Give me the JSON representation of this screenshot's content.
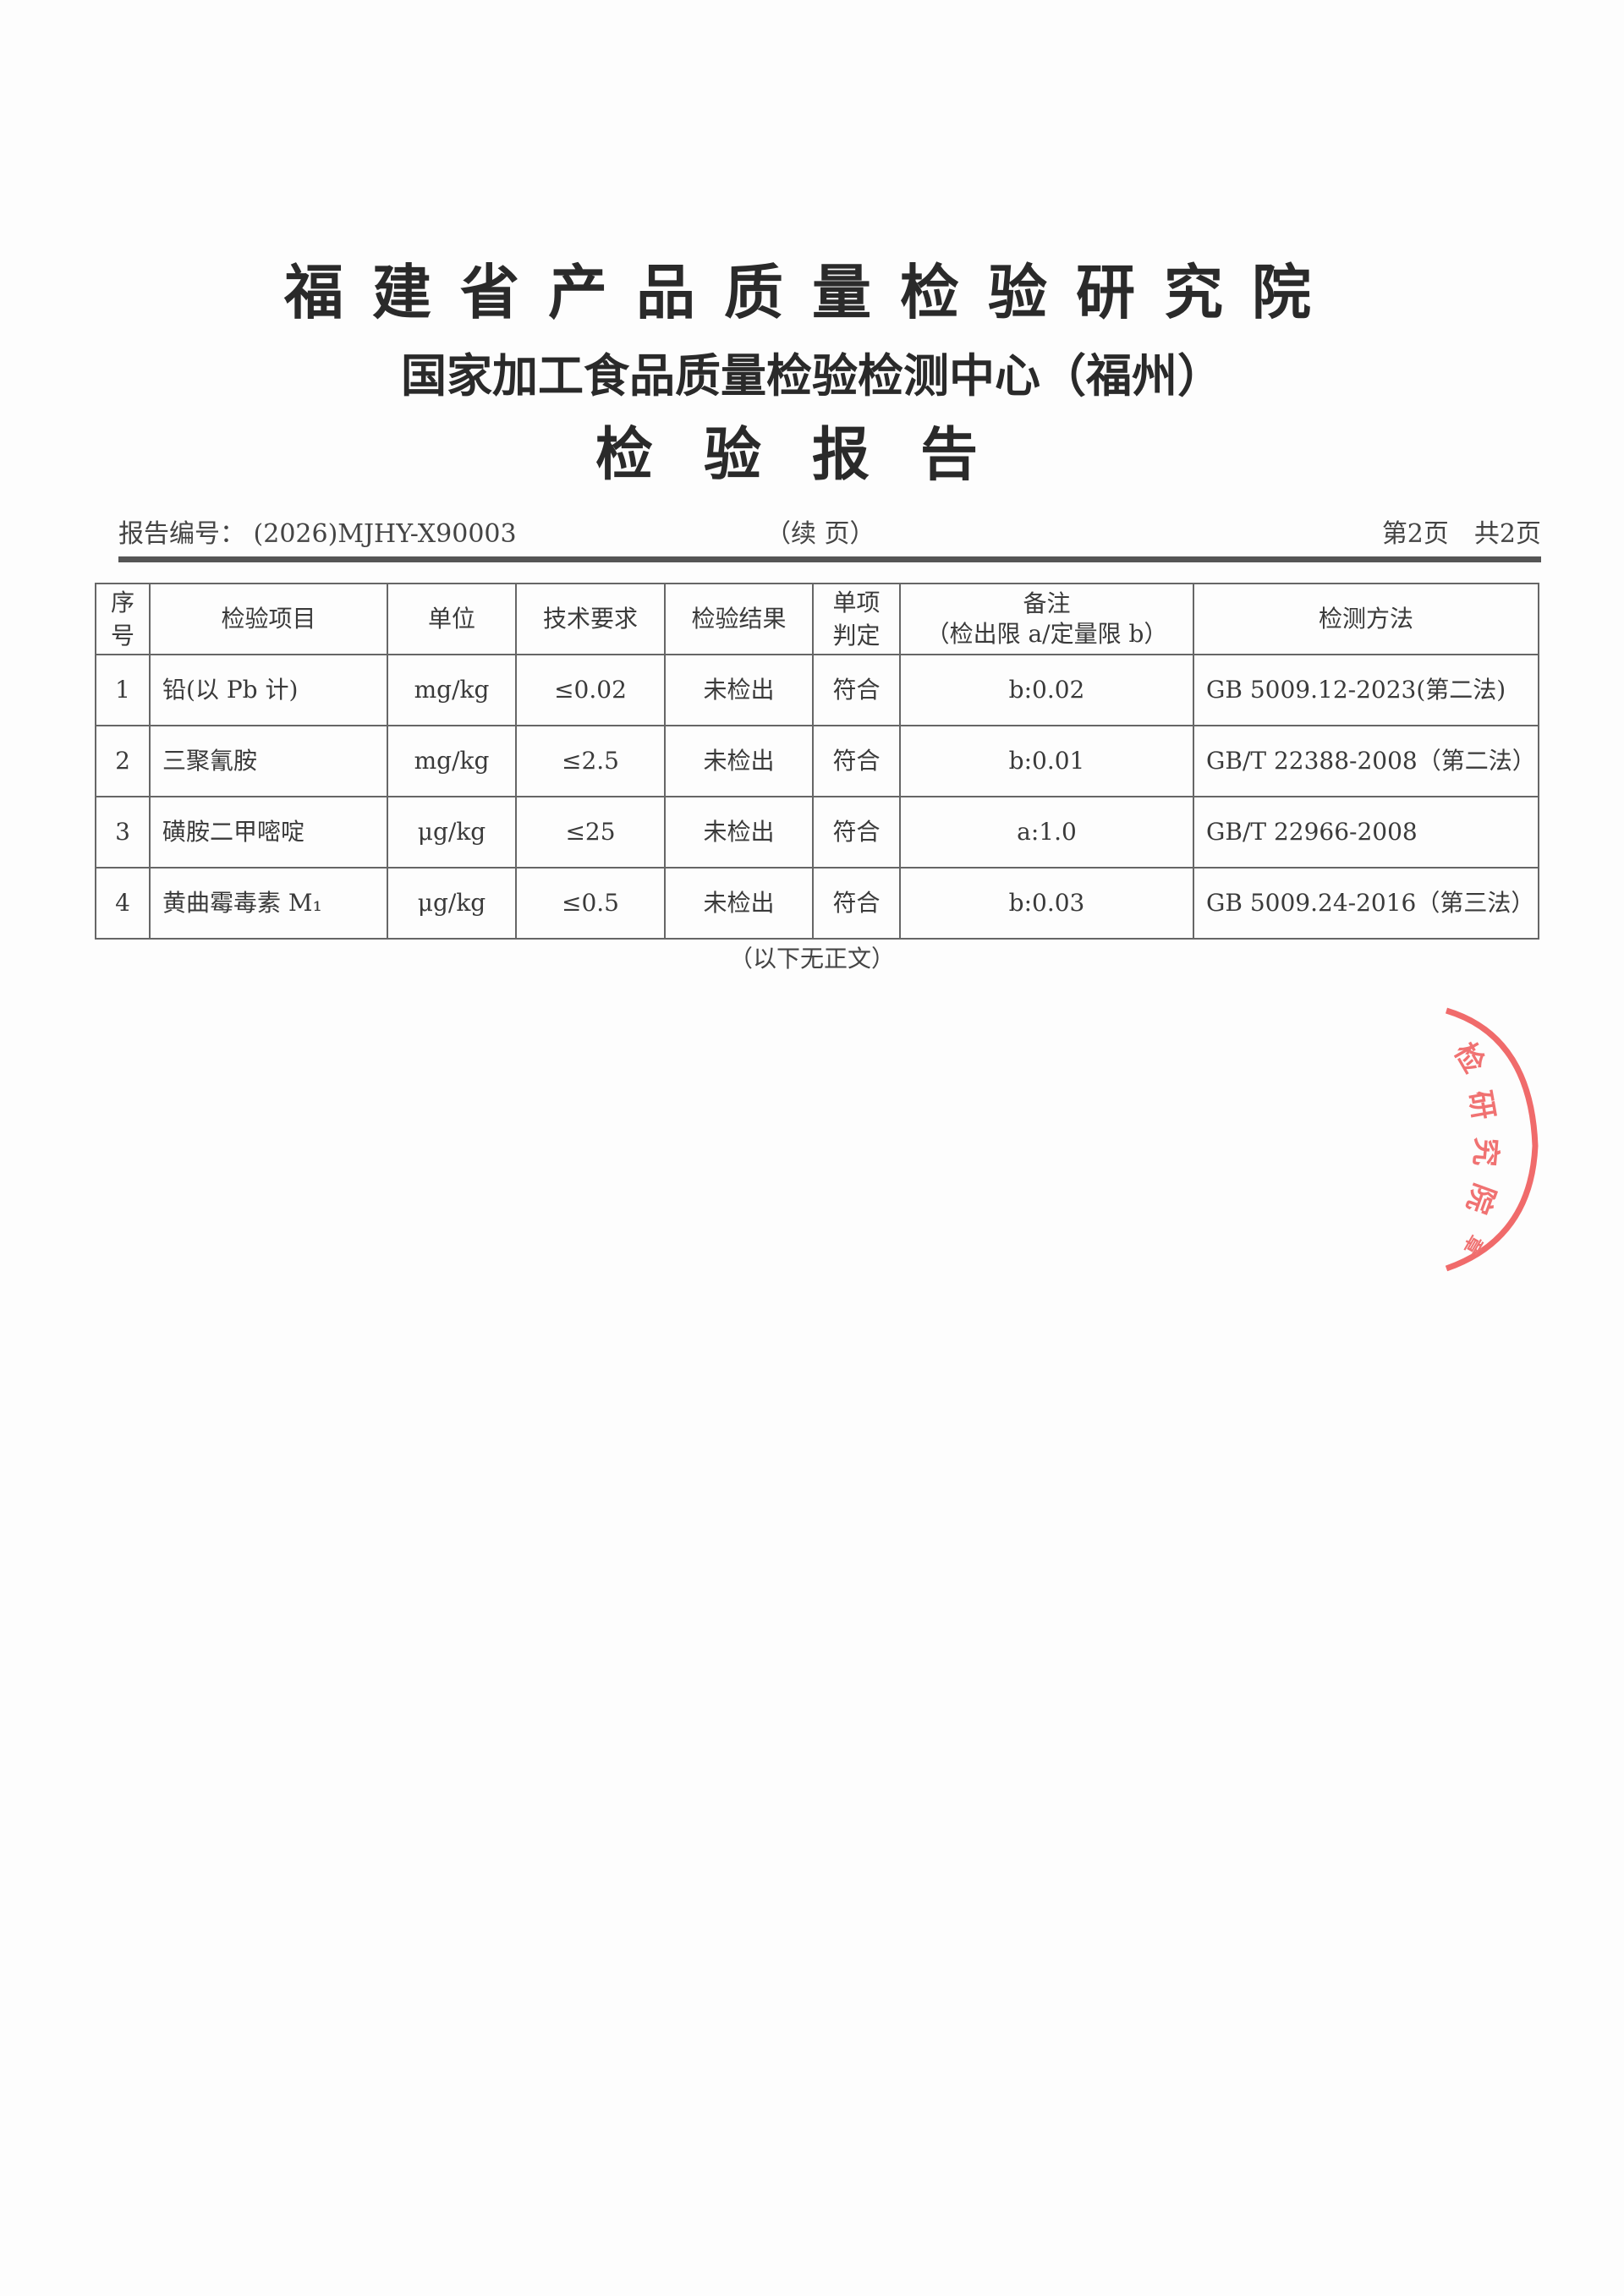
{
  "header": {
    "institute": "福建省产品质量检验研究院",
    "center": "国家加工食品质量检验检测中心（福州）",
    "doc_title": "检验报告",
    "report_no_label": "报告编号：",
    "report_no": "(2026)MJHY-X90003",
    "continued": "（续 页）",
    "page_info": "第2页　共2页"
  },
  "table": {
    "columns": [
      "序号",
      "检验项目",
      "单位",
      "技术要求",
      "检验结果",
      "单项判定",
      "备注（检出限a/定量限b）",
      "检测方法"
    ],
    "col_labels": {
      "seq": "序\n号",
      "judge_1": "单项",
      "judge_2": "判定",
      "remark_1": "备注",
      "remark_2": "（检出限 a/定量限 b）"
    },
    "rows": [
      {
        "seq": "1",
        "item": "铅(以 Pb 计)",
        "unit": "mg/kg",
        "req": "≤0.02",
        "result": "未检出",
        "judge": "符合",
        "remark": "b:0.02",
        "method": "GB 5009.12-2023(第二法)"
      },
      {
        "seq": "2",
        "item": "三聚氰胺",
        "unit": "mg/kg",
        "req": "≤2.5",
        "result": "未检出",
        "judge": "符合",
        "remark": "b:0.01",
        "method": "GB/T 22388-2008（第二法）"
      },
      {
        "seq": "3",
        "item": "磺胺二甲嘧啶",
        "unit": "μg/kg",
        "req": "≤25",
        "result": "未检出",
        "judge": "符合",
        "remark": "a:1.0",
        "method": "GB/T 22966-2008"
      },
      {
        "seq": "4",
        "item": "黄曲霉毒素 M₁",
        "unit": "μg/kg",
        "req": "≤0.5",
        "result": "未检出",
        "judge": "符合",
        "remark": "b:0.03",
        "method": "GB 5009.24-2016（第三法）"
      }
    ]
  },
  "footer": {
    "end_note": "（以下无正文）"
  },
  "stamp": {
    "text": "福建省产品质量检验研究院章",
    "visible_text": "检研究院 章",
    "color": "#f06b6b"
  }
}
